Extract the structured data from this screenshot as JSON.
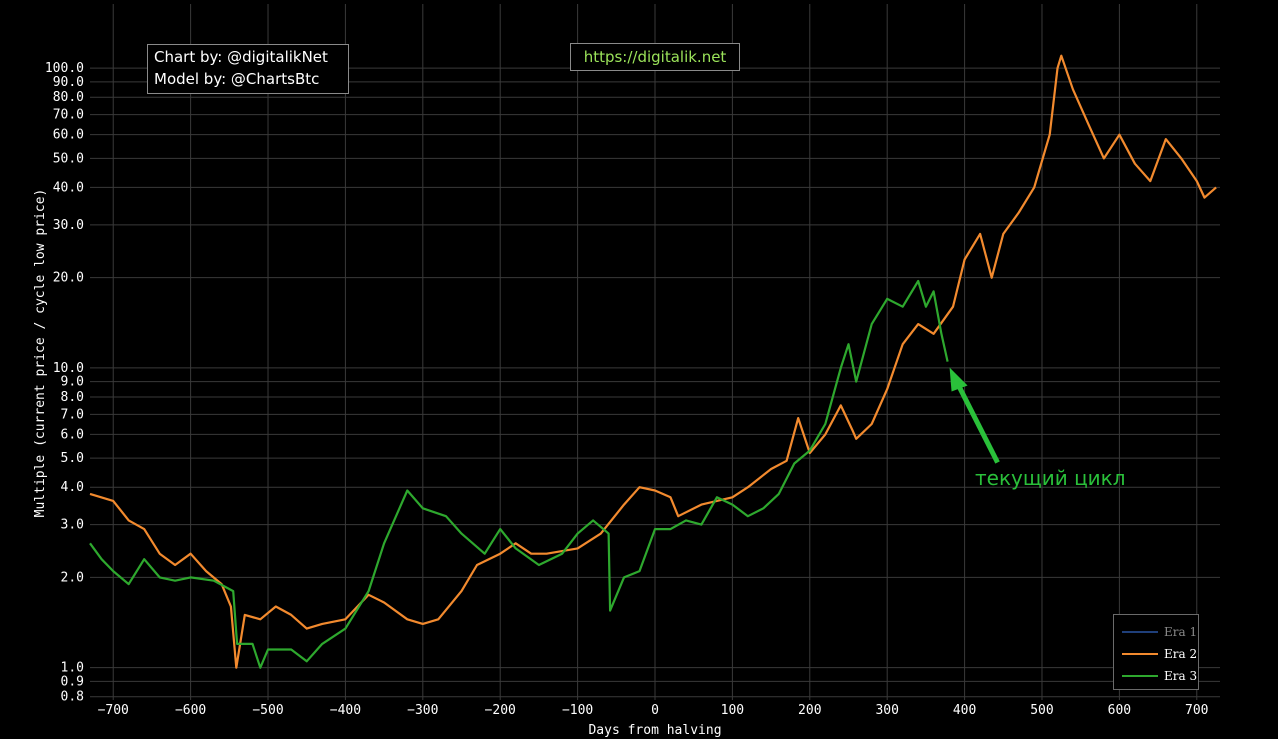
{
  "header": {
    "credit_line1": "Chart by: @digitalikNet",
    "credit_line2": "Model by: @ChartsBtc",
    "url": "https://digitalik.net"
  },
  "annotation": {
    "text": "текущий цикл",
    "color": "#2ac03a",
    "points_to": "Era 3 latest value"
  },
  "colors": {
    "background": "#000000",
    "grid": "#3a3a3a",
    "axis_text": "#ffffff"
  },
  "chart_data": {
    "type": "line",
    "title": "",
    "xlabel": "Days from halving",
    "ylabel": "Multiple (current price / cycle low price)",
    "y_scale": "log",
    "xlim": [
      -730,
      730
    ],
    "ylim": [
      0.78,
      130
    ],
    "x_ticks": [
      -700,
      -600,
      -500,
      -400,
      -300,
      -200,
      -100,
      0,
      100,
      200,
      300,
      400,
      500,
      600,
      700
    ],
    "x_tick_labels": [
      "−700",
      "−600",
      "−500",
      "−400",
      "−300",
      "−200",
      "−100",
      "0",
      "100",
      "200",
      "300",
      "400",
      "500",
      "600",
      "700"
    ],
    "y_ticks": [
      0.8,
      0.9,
      1.0,
      2.0,
      3.0,
      4.0,
      5.0,
      6.0,
      7.0,
      8.0,
      9.0,
      10.0,
      20.0,
      30.0,
      40.0,
      50.0,
      60.0,
      70.0,
      80.0,
      90.0,
      100.0
    ],
    "y_tick_labels": [
      "0.8",
      "0.9",
      "1.0",
      "2.0",
      "3.0",
      "4.0",
      "5.0",
      "6.0",
      "7.0",
      "8.0",
      "9.0",
      "10.0",
      "20.0",
      "30.0",
      "40.0",
      "50.0",
      "60.0",
      "70.0",
      "80.0",
      "90.0",
      "100.0"
    ],
    "grid": true,
    "legend_position": "bottom-right",
    "series": [
      {
        "name": "Era 1",
        "color": "#1f3f7a",
        "points": []
      },
      {
        "name": "Era 2",
        "color": "#f28a2e",
        "points": [
          [
            -730,
            3.8
          ],
          [
            -700,
            3.6
          ],
          [
            -680,
            3.1
          ],
          [
            -660,
            2.9
          ],
          [
            -640,
            2.4
          ],
          [
            -620,
            2.2
          ],
          [
            -600,
            2.4
          ],
          [
            -580,
            2.1
          ],
          [
            -560,
            1.9
          ],
          [
            -548,
            1.6
          ],
          [
            -541,
            1.0
          ],
          [
            -530,
            1.5
          ],
          [
            -510,
            1.45
          ],
          [
            -490,
            1.6
          ],
          [
            -470,
            1.5
          ],
          [
            -450,
            1.35
          ],
          [
            -430,
            1.4
          ],
          [
            -400,
            1.45
          ],
          [
            -370,
            1.75
          ],
          [
            -350,
            1.65
          ],
          [
            -320,
            1.45
          ],
          [
            -300,
            1.4
          ],
          [
            -280,
            1.45
          ],
          [
            -250,
            1.8
          ],
          [
            -230,
            2.2
          ],
          [
            -200,
            2.4
          ],
          [
            -180,
            2.6
          ],
          [
            -160,
            2.4
          ],
          [
            -140,
            2.4
          ],
          [
            -100,
            2.5
          ],
          [
            -70,
            2.8
          ],
          [
            -40,
            3.5
          ],
          [
            -20,
            4.0
          ],
          [
            0,
            3.9
          ],
          [
            20,
            3.7
          ],
          [
            30,
            3.2
          ],
          [
            60,
            3.5
          ],
          [
            100,
            3.7
          ],
          [
            120,
            4.0
          ],
          [
            150,
            4.6
          ],
          [
            170,
            4.9
          ],
          [
            185,
            6.8
          ],
          [
            200,
            5.2
          ],
          [
            220,
            6.0
          ],
          [
            240,
            7.5
          ],
          [
            255,
            6.2
          ],
          [
            260,
            5.8
          ],
          [
            280,
            6.5
          ],
          [
            300,
            8.5
          ],
          [
            320,
            12.0
          ],
          [
            340,
            14.0
          ],
          [
            360,
            13.0
          ],
          [
            385,
            16.0
          ],
          [
            400,
            23.0
          ],
          [
            420,
            28.0
          ],
          [
            435,
            20.0
          ],
          [
            450,
            28.0
          ],
          [
            470,
            33.0
          ],
          [
            490,
            40.0
          ],
          [
            510,
            60.0
          ],
          [
            520,
            100.0
          ],
          [
            525,
            110.0
          ],
          [
            540,
            85.0
          ],
          [
            560,
            65.0
          ],
          [
            580,
            50.0
          ],
          [
            600,
            60.0
          ],
          [
            620,
            48.0
          ],
          [
            640,
            42.0
          ],
          [
            660,
            58.0
          ],
          [
            680,
            50.0
          ],
          [
            700,
            42.0
          ],
          [
            710,
            37.0
          ],
          [
            725,
            40.0
          ]
        ]
      },
      {
        "name": "Era 3",
        "color": "#2ea82e",
        "points": [
          [
            -730,
            2.6
          ],
          [
            -715,
            2.3
          ],
          [
            -700,
            2.1
          ],
          [
            -680,
            1.9
          ],
          [
            -660,
            2.3
          ],
          [
            -640,
            2.0
          ],
          [
            -620,
            1.95
          ],
          [
            -600,
            2.0
          ],
          [
            -570,
            1.95
          ],
          [
            -545,
            1.8
          ],
          [
            -540,
            1.2
          ],
          [
            -520,
            1.2
          ],
          [
            -510,
            1.0
          ],
          [
            -500,
            1.15
          ],
          [
            -470,
            1.15
          ],
          [
            -450,
            1.05
          ],
          [
            -430,
            1.2
          ],
          [
            -400,
            1.35
          ],
          [
            -370,
            1.8
          ],
          [
            -350,
            2.6
          ],
          [
            -320,
            3.9
          ],
          [
            -300,
            3.4
          ],
          [
            -270,
            3.2
          ],
          [
            -250,
            2.8
          ],
          [
            -220,
            2.4
          ],
          [
            -200,
            2.9
          ],
          [
            -180,
            2.5
          ],
          [
            -150,
            2.2
          ],
          [
            -120,
            2.4
          ],
          [
            -100,
            2.8
          ],
          [
            -80,
            3.1
          ],
          [
            -60,
            2.8
          ],
          [
            -58,
            1.55
          ],
          [
            -40,
            2.0
          ],
          [
            -20,
            2.1
          ],
          [
            0,
            2.9
          ],
          [
            20,
            2.9
          ],
          [
            40,
            3.1
          ],
          [
            60,
            3.0
          ],
          [
            80,
            3.7
          ],
          [
            100,
            3.5
          ],
          [
            120,
            3.2
          ],
          [
            140,
            3.4
          ],
          [
            160,
            3.8
          ],
          [
            180,
            4.8
          ],
          [
            200,
            5.3
          ],
          [
            220,
            6.5
          ],
          [
            240,
            10.0
          ],
          [
            250,
            12.0
          ],
          [
            260,
            9.0
          ],
          [
            280,
            14.0
          ],
          [
            300,
            17.0
          ],
          [
            320,
            16.0
          ],
          [
            340,
            19.5
          ],
          [
            350,
            16.0
          ],
          [
            360,
            18.0
          ],
          [
            370,
            13.0
          ],
          [
            378,
            10.5
          ]
        ]
      }
    ]
  }
}
